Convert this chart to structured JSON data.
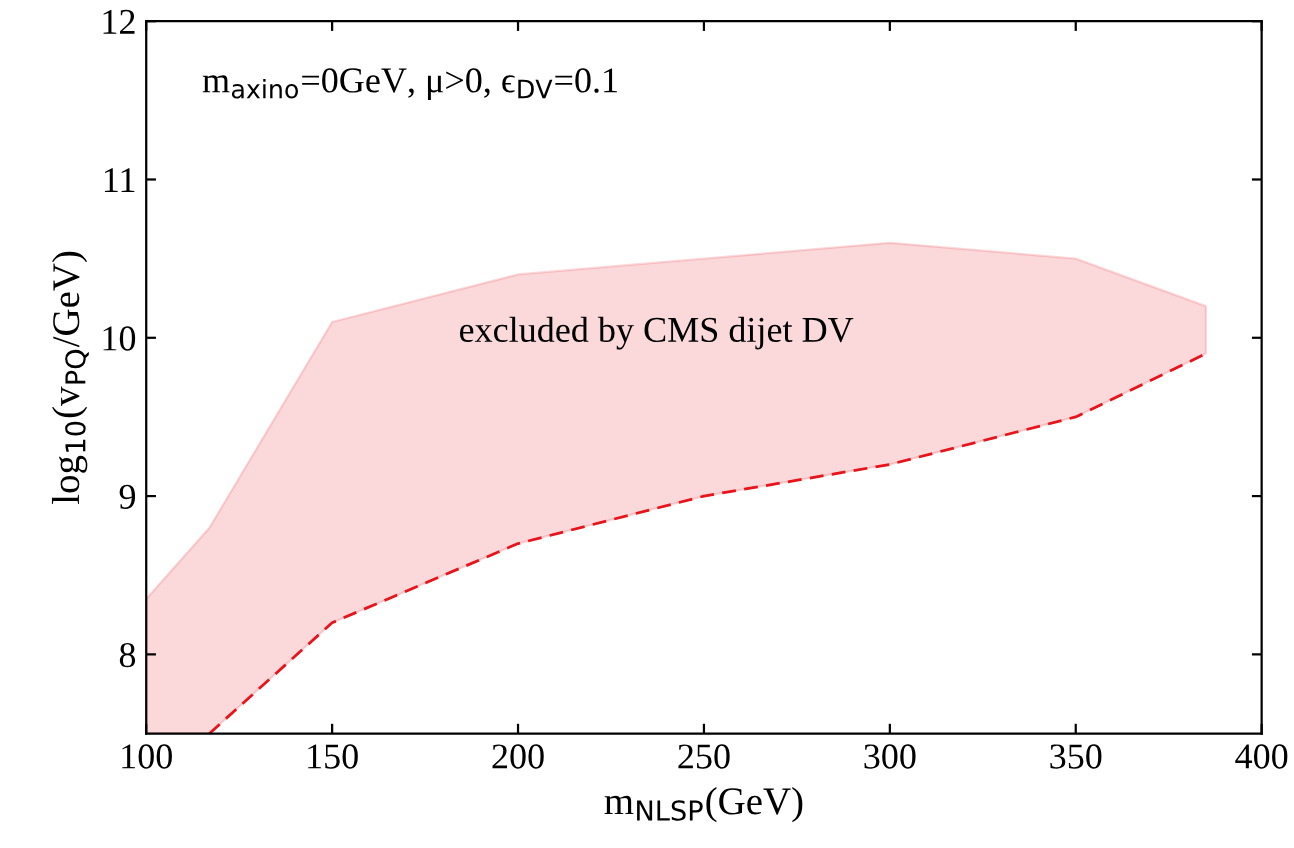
{
  "chart_data": {
    "type": "line",
    "xlabel": "m$_{NLSP}$(GeV)",
    "ylabel": "log$_{10}$(v$_{PQ}$/GeV)",
    "xlim": [
      100,
      400
    ],
    "ylim": [
      7.5,
      12
    ],
    "xticks": [
      100,
      150,
      200,
      250,
      300,
      350,
      400
    ],
    "yticks": [
      8,
      9,
      10,
      11,
      12
    ],
    "grid": false,
    "legend": false,
    "annotations": [
      "m$_{axino}$=0GeV, μ>0, ϵ$_{DV}$=0.1",
      "excluded by CMS dijet DV"
    ],
    "series": [
      {
        "color": "#e8141c",
        "line_style": "dashed",
        "x": [
          100,
          117,
          150,
          200,
          250,
          300,
          350,
          385
        ],
        "values": [
          null,
          7.5,
          8.2,
          8.7,
          9.0,
          9.2,
          9.5,
          9.9
        ],
        "lower": [
          7.5,
          7.5,
          8.2,
          8.7,
          9.0,
          9.2,
          9.5,
          9.9
        ],
        "upper": [
          8.35,
          8.8,
          10.1,
          10.4,
          10.5,
          10.6,
          10.5,
          10.2
        ]
      }
    ]
  }
}
